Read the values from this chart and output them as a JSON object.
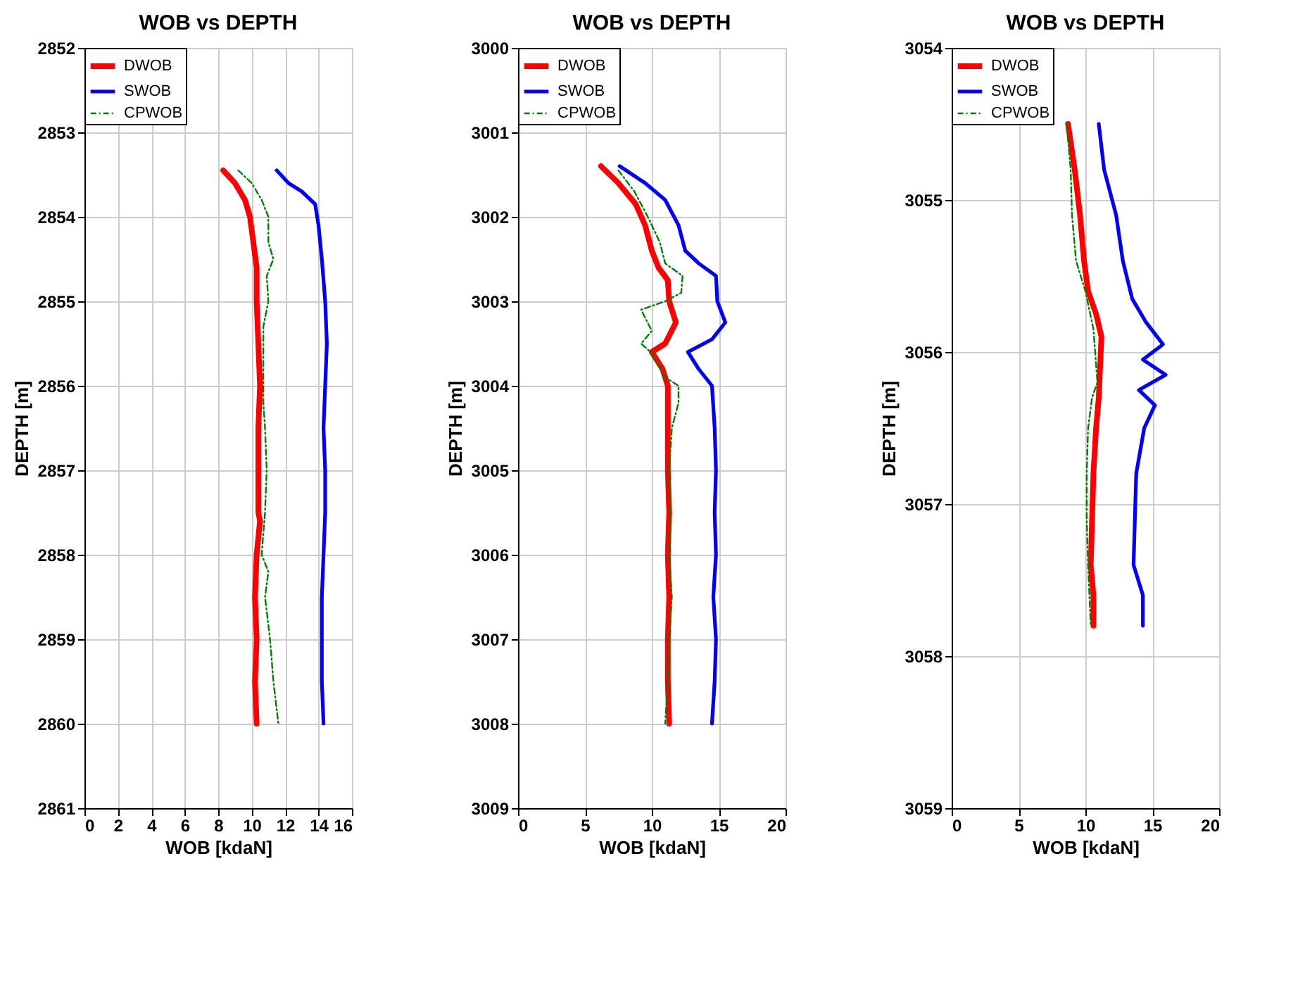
{
  "chart_data": [
    {
      "type": "line",
      "title": "WOB vs DEPTH",
      "xlabel": "WOB [kdaN]",
      "ylabel": "DEPTH [m]",
      "xlim": [
        0,
        16
      ],
      "xticks": [
        0,
        2,
        4,
        6,
        8,
        10,
        12,
        14,
        16
      ],
      "ylim": [
        2861,
        2852
      ],
      "yticks": [
        2852,
        2853,
        2854,
        2855,
        2856,
        2857,
        2858,
        2859,
        2860,
        2861
      ],
      "grid": true,
      "legend": "top left",
      "marker": "none",
      "series": [
        {
          "name": "DWOB",
          "color": "#ff0000",
          "line_style": "solid",
          "x": [
            8.3,
            9,
            9.6,
            9.9,
            10.1,
            10.3,
            10.3,
            10.4,
            10.5,
            10.4,
            10.4,
            10.4,
            10.5,
            10.3,
            10.2,
            10.3,
            10.2,
            10.3
          ],
          "values": [
            2853.45,
            2853.6,
            2853.8,
            2854,
            2854.3,
            2854.6,
            2855,
            2855.5,
            2856,
            2856.5,
            2857,
            2857.5,
            2857.6,
            2858,
            2858.5,
            2859,
            2859.5,
            2860
          ]
        },
        {
          "name": "SWOB",
          "color": "#0000ff",
          "line_style": "solid",
          "x": [
            11.5,
            12.2,
            13,
            13.8,
            14,
            14.2,
            14.4,
            14.5,
            14.4,
            14.3,
            14.4,
            14.4,
            14.3,
            14.2,
            14.2,
            14.2,
            14.3
          ],
          "values": [
            2853.45,
            2853.6,
            2853.7,
            2853.85,
            2854.1,
            2854.5,
            2855,
            2855.5,
            2856,
            2856.5,
            2857,
            2857.5,
            2858,
            2858.5,
            2859,
            2859.5,
            2860
          ]
        },
        {
          "name": "CPWOB",
          "color": "#008000",
          "line_style": "dashed",
          "x": [
            9.2,
            10,
            10.6,
            11,
            11,
            11.3,
            10.9,
            11,
            10.7,
            10.7,
            10.7,
            10.8,
            10.9,
            10.8,
            10.6,
            11,
            10.8,
            11.1,
            11.3,
            11.6
          ],
          "values": [
            2853.45,
            2853.6,
            2853.8,
            2854,
            2854.3,
            2854.5,
            2854.7,
            2855,
            2855.3,
            2855.8,
            2856.2,
            2856.5,
            2857,
            2857.5,
            2858,
            2858.2,
            2858.5,
            2859,
            2859.5,
            2860
          ]
        }
      ]
    },
    {
      "type": "line",
      "title": "WOB vs DEPTH",
      "xlabel": "WOB [kdaN]",
      "ylabel": "DEPTH [m]",
      "xlim": [
        0,
        20
      ],
      "xticks": [
        0,
        5,
        10,
        15,
        20
      ],
      "ylim": [
        3009,
        3000
      ],
      "yticks": [
        3000,
        3001,
        3002,
        3003,
        3004,
        3005,
        3006,
        3007,
        3008,
        3009
      ],
      "grid": true,
      "legend": "top left",
      "marker": "none",
      "series": [
        {
          "name": "DWOB",
          "color": "#ff0000",
          "line_style": "solid",
          "x": [
            6.2,
            7.5,
            8.8,
            9.5,
            10,
            10.5,
            11.2,
            11.3,
            11.8,
            11,
            10,
            10.8,
            11.2,
            11.2,
            11.2,
            11.3,
            11.2,
            11.3,
            11.2,
            11.2,
            11.3
          ],
          "values": [
            3001.4,
            3001.6,
            3001.85,
            3002.1,
            3002.4,
            3002.6,
            3002.75,
            3003,
            3003.25,
            3003.5,
            3003.6,
            3003.8,
            3004,
            3004.5,
            3005,
            3005.5,
            3006,
            3006.5,
            3007,
            3007.5,
            3008
          ]
        },
        {
          "name": "SWOB",
          "color": "#0000ff",
          "line_style": "solid",
          "x": [
            7.6,
            9.5,
            11,
            12,
            12.5,
            13.5,
            14.8,
            14.9,
            15.5,
            14.5,
            12.7,
            13.5,
            14.5,
            14.7,
            14.8,
            14.7,
            14.8,
            14.6,
            14.8,
            14.7,
            14.5
          ],
          "values": [
            3001.4,
            3001.6,
            3001.8,
            3002.1,
            3002.4,
            3002.55,
            3002.7,
            3003,
            3003.25,
            3003.45,
            3003.6,
            3003.8,
            3004,
            3004.5,
            3005,
            3005.5,
            3006,
            3006.5,
            3007,
            3007.5,
            3008
          ]
        },
        {
          "name": "CPWOB",
          "color": "#008000",
          "line_style": "dashed",
          "x": [
            7.5,
            8.7,
            9.7,
            10.6,
            11,
            12.3,
            12.2,
            11,
            9.2,
            10,
            9.2,
            9.9,
            11,
            12,
            12,
            11.5,
            11.3,
            11.4,
            11.3,
            11.5,
            11.3,
            11.2,
            11
          ],
          "values": [
            3001.45,
            3001.7,
            3002,
            3002.3,
            3002.55,
            3002.7,
            3002.9,
            3003,
            3003.1,
            3003.35,
            3003.5,
            3003.6,
            3003.9,
            3004,
            3004.2,
            3004.5,
            3005,
            3005.5,
            3006,
            3006.5,
            3007,
            3007.5,
            3008
          ]
        }
      ]
    },
    {
      "type": "line",
      "title": "WOB vs DEPTH",
      "xlabel": "WOB [kdaN]",
      "ylabel": "DEPTH [m]",
      "xlim": [
        0,
        20
      ],
      "xticks": [
        0,
        5,
        10,
        15,
        20
      ],
      "ylim": [
        3059,
        3054
      ],
      "yticks": [
        3054,
        3055,
        3056,
        3057,
        3058,
        3059
      ],
      "grid": true,
      "legend": "top left",
      "marker": "none",
      "series": [
        {
          "name": "DWOB",
          "color": "#ff0000",
          "line_style": "solid",
          "x": [
            8.7,
            9.2,
            9.6,
            9.9,
            10.2,
            10.8,
            11.2,
            11.1,
            11,
            10.8,
            10.6,
            10.5,
            10.4,
            10.6,
            10.6
          ],
          "values": [
            3054.5,
            3054.8,
            3055.1,
            3055.4,
            3055.6,
            3055.75,
            3055.9,
            3056.1,
            3056.3,
            3056.5,
            3056.8,
            3057.1,
            3057.4,
            3057.6,
            3057.8
          ]
        },
        {
          "name": "SWOB",
          "color": "#0000ff",
          "line_style": "solid",
          "x": [
            11,
            11.4,
            12.3,
            12.8,
            13.5,
            14.5,
            15.8,
            14.3,
            16,
            14,
            15.2,
            14.4,
            13.8,
            13.7,
            13.6,
            14.3,
            14.3
          ],
          "values": [
            3054.5,
            3054.8,
            3055.1,
            3055.4,
            3055.65,
            3055.8,
            3055.95,
            3056.05,
            3056.15,
            3056.25,
            3056.35,
            3056.5,
            3056.8,
            3057.1,
            3057.4,
            3057.6,
            3057.8
          ]
        },
        {
          "name": "CPWOB",
          "color": "#008000",
          "line_style": "dashed",
          "x": [
            8.6,
            8.9,
            9,
            9.3,
            10,
            10.6,
            10.9,
            10.5,
            10.2,
            10.1,
            10.1,
            10.2,
            10.3,
            10.4
          ],
          "values": [
            3054.5,
            3054.8,
            3055.1,
            3055.4,
            3055.6,
            3055.85,
            3056.2,
            3056.3,
            3056.5,
            3056.8,
            3057.1,
            3057.4,
            3057.6,
            3057.8
          ]
        }
      ]
    }
  ]
}
